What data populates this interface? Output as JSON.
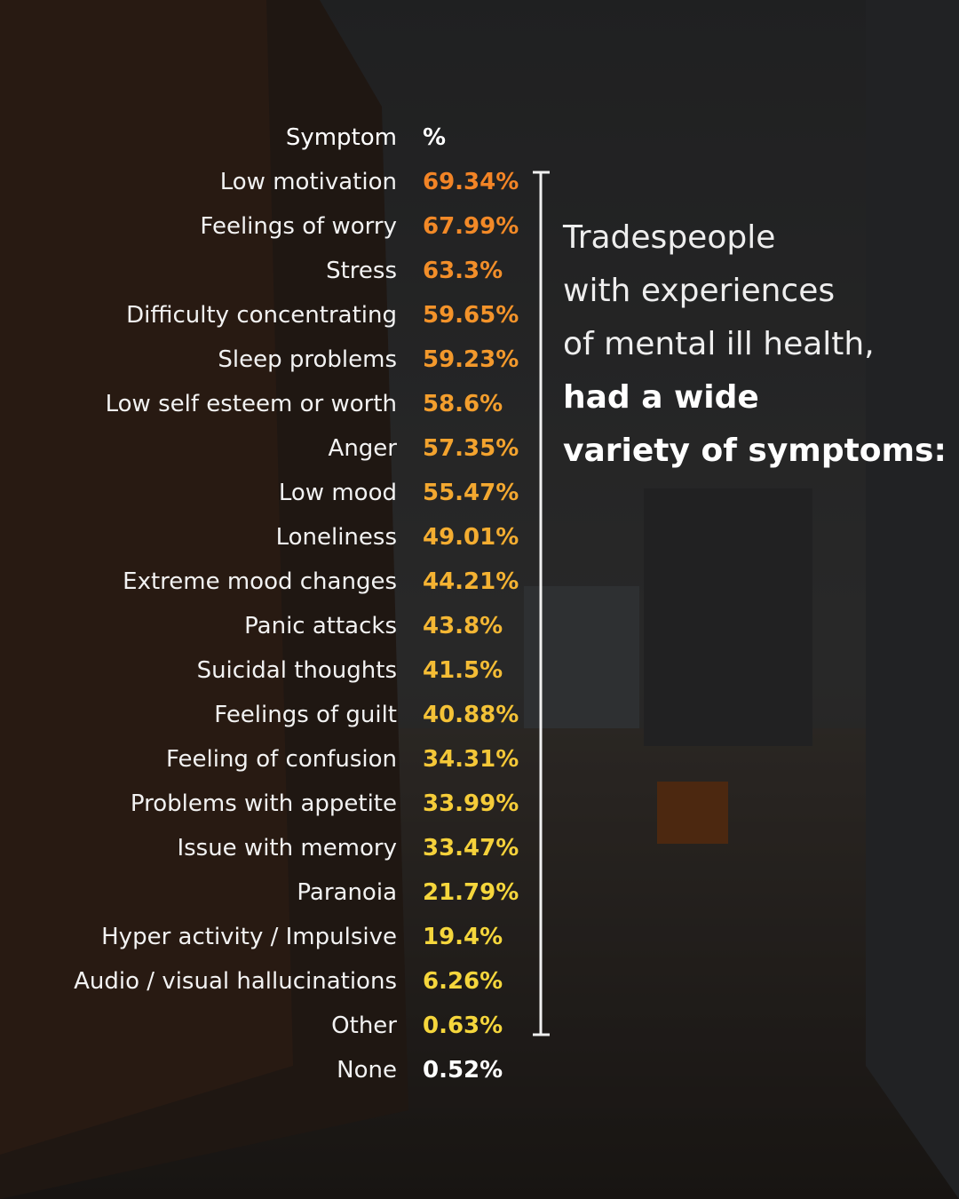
{
  "table": {
    "header": [
      "Symptom",
      "%"
    ],
    "rows": [
      [
        "Low motivation",
        "69.34%"
      ],
      [
        "Feelings of worry",
        "67.99%"
      ],
      [
        "Stress",
        "63.3%"
      ],
      [
        "Difficulty concentrating",
        "59.65%"
      ],
      [
        "Sleep problems",
        "59.23%"
      ],
      [
        "Low self esteem or worth",
        "58.6%"
      ],
      [
        "Anger",
        "57.35%"
      ],
      [
        "Low mood",
        "55.47%"
      ],
      [
        "Loneliness",
        "49.01%"
      ],
      [
        "Extreme mood changes",
        "44.21%"
      ],
      [
        "Panic attacks",
        "43.8%"
      ],
      [
        "Suicidal thoughts",
        "41.5%"
      ],
      [
        "Feelings of guilt",
        "40.88%"
      ],
      [
        "Feeling of confusion",
        "34.31%"
      ],
      [
        "Problems with appetite",
        "33.99%"
      ],
      [
        "Issue with memory",
        "33.47%"
      ],
      [
        "Paranoia",
        "21.79%"
      ],
      [
        "Hyper activity / Impulsive",
        "19.4%"
      ],
      [
        "Audio / visual hallucinations",
        "6.26%"
      ],
      [
        "Other",
        "0.63%"
      ],
      [
        "None",
        "0.52%"
      ]
    ]
  },
  "caption": {
    "lines": [
      "Tradespeople",
      "with experiences",
      "of mental ill health,"
    ],
    "emphasis": [
      "had a wide",
      "variety of symptoms:"
    ]
  }
}
